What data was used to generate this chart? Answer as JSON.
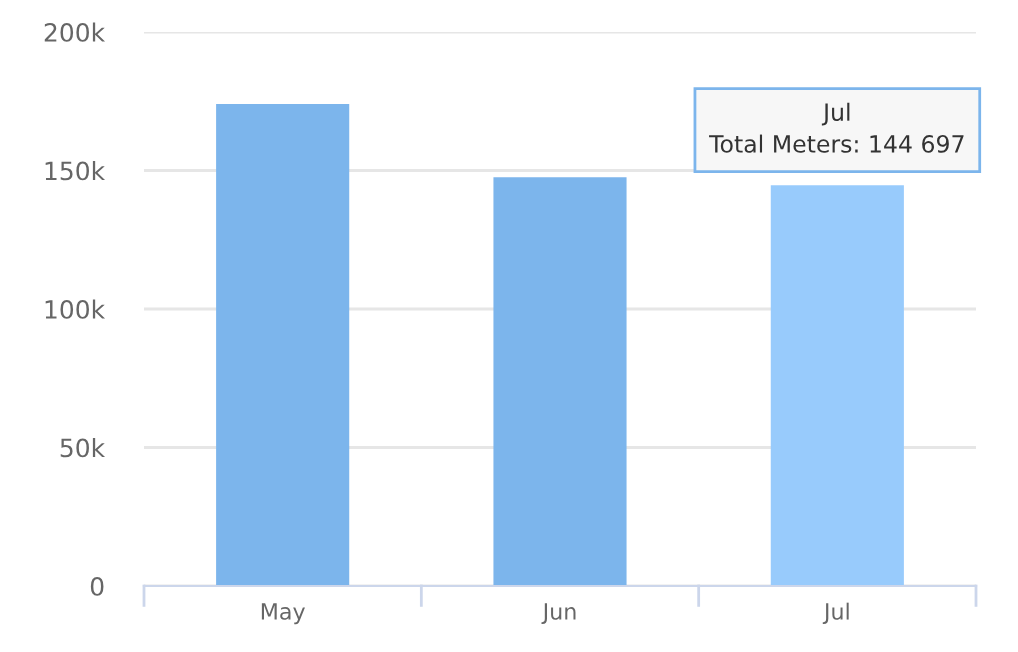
{
  "chart_data": {
    "type": "bar",
    "categories": [
      "May",
      "Jun",
      "Jul"
    ],
    "values": [
      174000,
      147600,
      144697
    ],
    "colors": [
      "#7cb5ec",
      "#7cb5ec",
      "#98cbfc"
    ],
    "ylim": [
      0,
      200000
    ],
    "yticks": [
      {
        "value": 0,
        "label": "0"
      },
      {
        "value": 50000,
        "label": "50k"
      },
      {
        "value": 100000,
        "label": "100k"
      },
      {
        "value": 150000,
        "label": "150k"
      },
      {
        "value": 200000,
        "label": "200k"
      }
    ],
    "grid": "y",
    "annotations": [
      {
        "text": "Jul\nTotal Meters: 144 697",
        "x": "Jul",
        "y": 144697
      }
    ]
  }
}
